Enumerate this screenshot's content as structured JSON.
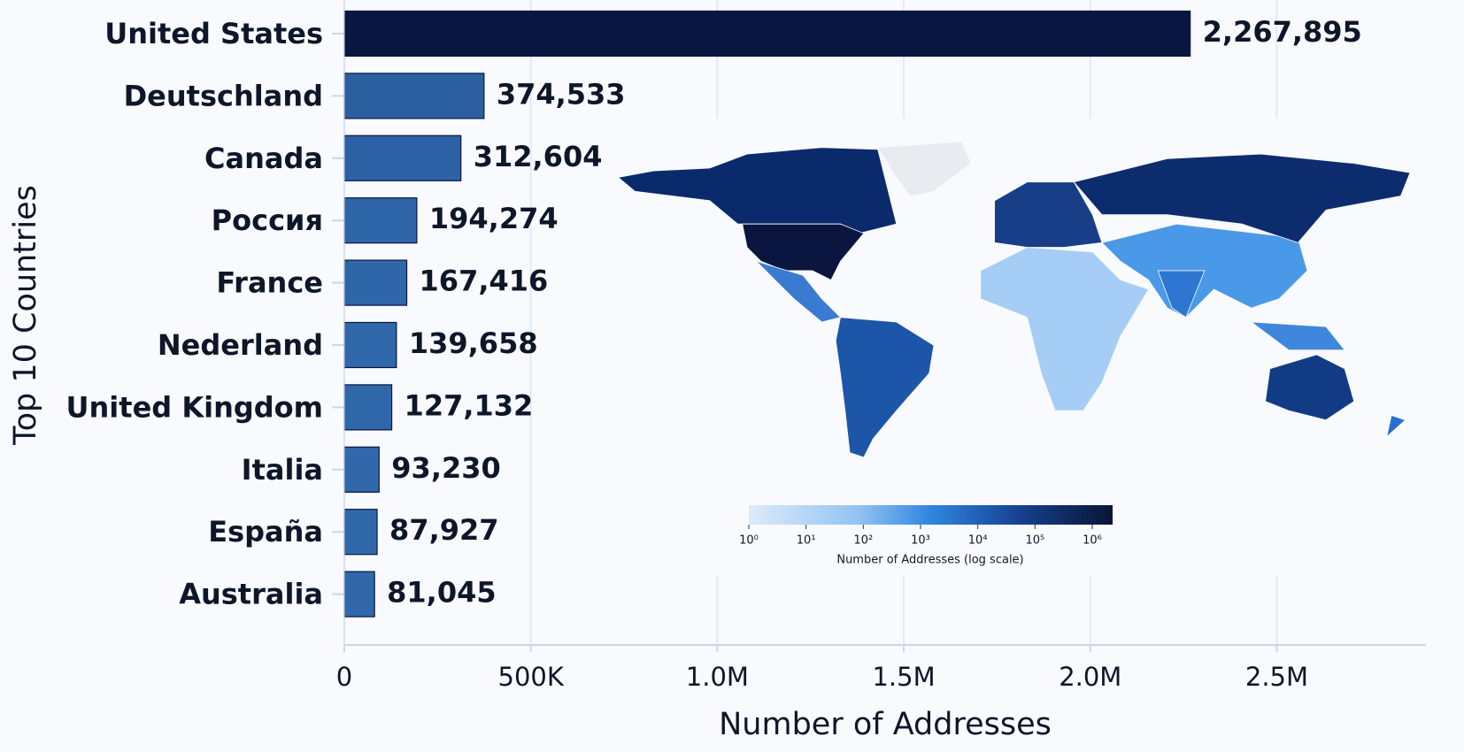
{
  "chart_data": [
    {
      "type": "barh",
      "categories": [
        "United States",
        "Deutschland",
        "Canada",
        "Россия",
        "France",
        "Nederland",
        "United Kingdom",
        "Italia",
        "España",
        "Australia"
      ],
      "values": [
        2267895,
        374533,
        312604,
        194274,
        167416,
        139658,
        127132,
        93230,
        87927,
        81045
      ],
      "value_labels": [
        "2,267,895",
        "374,533",
        "312,604",
        "194,274",
        "167,416",
        "139,658",
        "127,132",
        "93,230",
        "87,927",
        "81,045"
      ],
      "colors": [
        "#0a1640",
        "#2b5f9f",
        "#2c62a5",
        "#2e66a9",
        "#2e66a9",
        "#2f67aa",
        "#2f67aa",
        "#3068ab",
        "#3068ab",
        "#3068ab"
      ],
      "xlabel": "Number of Addresses",
      "ylabel": "Top 10 Countries",
      "xlim": [
        0,
        2900000
      ],
      "xticks": [
        0,
        {
          "value": 500000,
          "label": "500K"
        },
        {
          "value": 1000000,
          "label": "1.0M"
        },
        {
          "value": 1500000,
          "label": "1.5M"
        },
        {
          "value": 2000000,
          "label": "2.0M"
        },
        {
          "value": 2500000,
          "label": "2.5M"
        }
      ],
      "grid": true
    },
    {
      "type": "choropleth",
      "colorbar_label": "Number of Addresses (log scale)",
      "clim": [
        1,
        2267895
      ],
      "log_scale": true,
      "cticks": [
        {
          "value": 1,
          "label": "10⁰"
        },
        {
          "value": 10,
          "label": "10¹"
        },
        {
          "value": 100,
          "label": "10²"
        },
        {
          "value": 1000,
          "label": "10³"
        },
        {
          "value": 10000,
          "label": "10⁴"
        },
        {
          "value": 100000,
          "label": "10⁵"
        },
        {
          "value": 1000000,
          "label": "10⁶"
        }
      ]
    }
  ]
}
